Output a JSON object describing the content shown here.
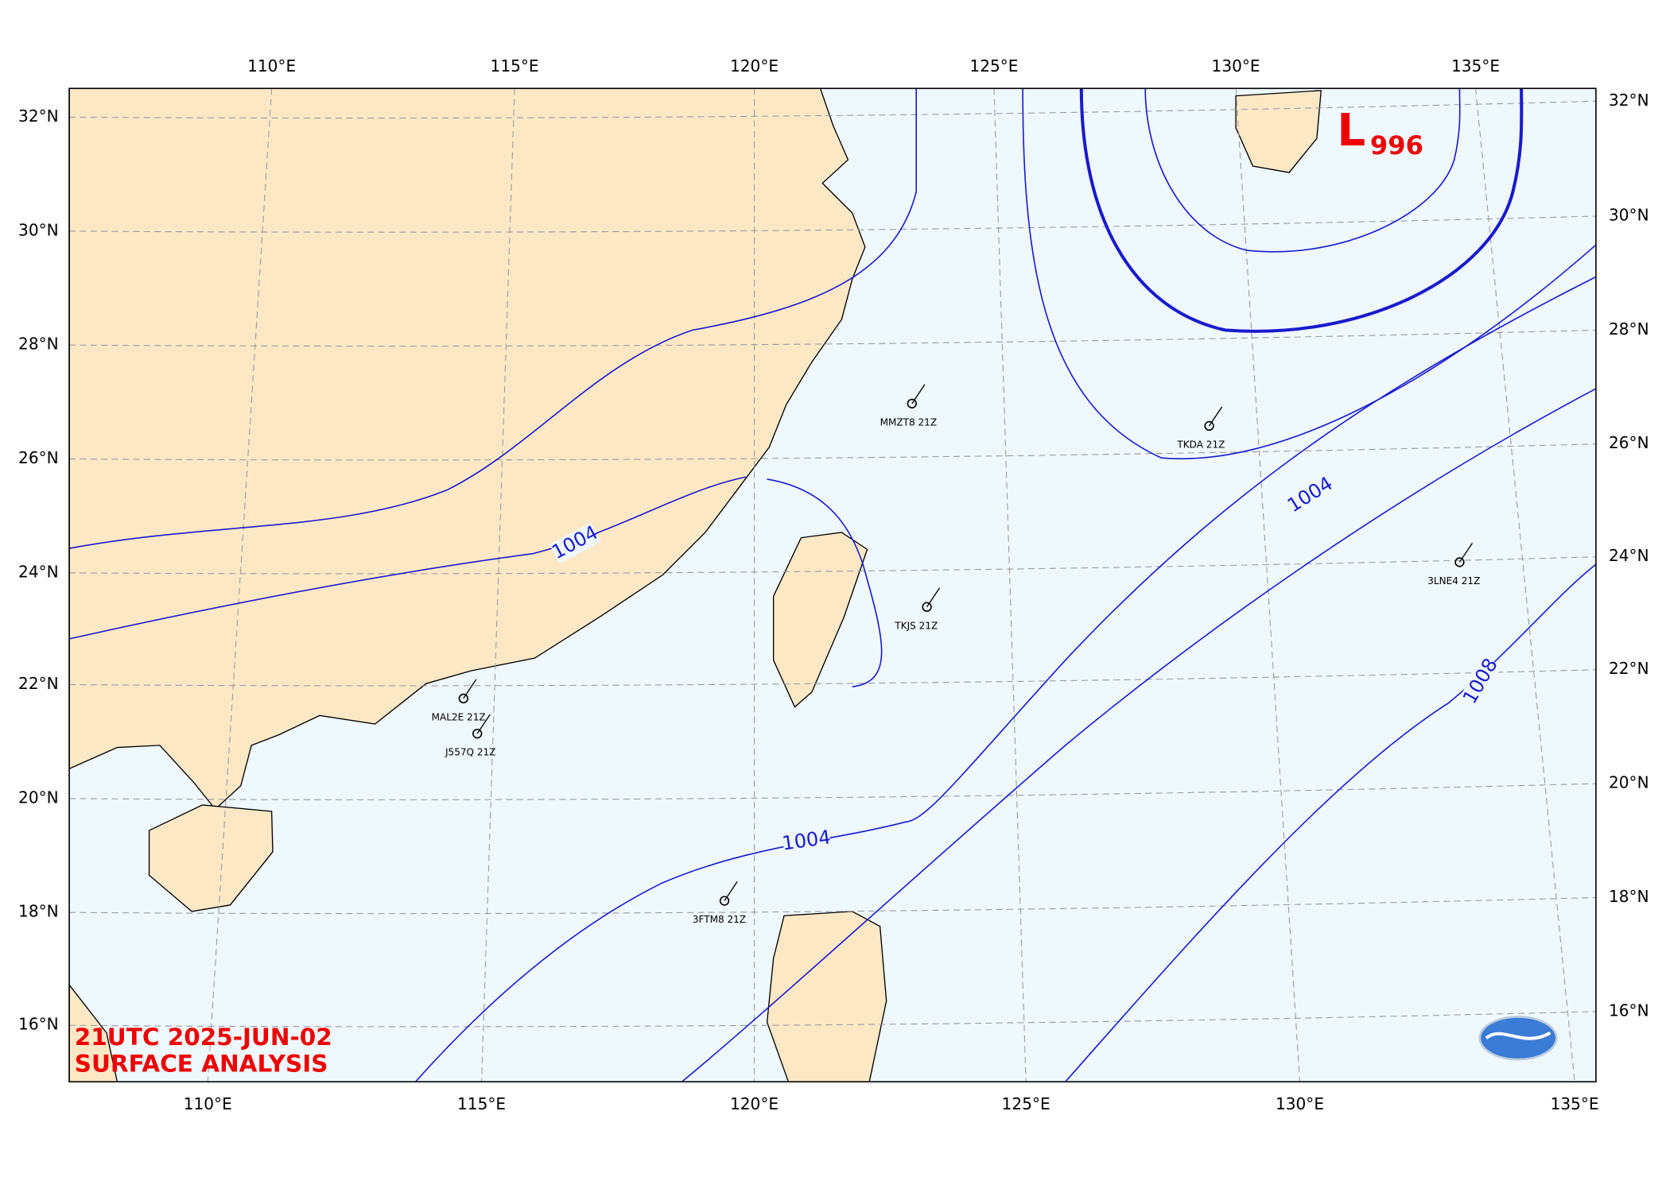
{
  "map": {
    "title_lines": [
      "21UTC  2025-JUN-02",
      "SURFACE ANALYSIS"
    ],
    "lon_labels_top": [
      "110°E",
      "115°E",
      "120°E",
      "125°E",
      "130°E",
      "135°E"
    ],
    "lon_labels_bottom": [
      "110°E",
      "115°E",
      "120°E",
      "125°E",
      "130°E",
      "135°E"
    ],
    "lat_labels_left": [
      "32°N",
      "30°N",
      "28°N",
      "26°N",
      "24°N",
      "22°N",
      "20°N",
      "18°N",
      "16°N"
    ],
    "lat_labels_right": [
      "32°N",
      "30°N",
      "28°N",
      "26°N",
      "24°N",
      "22°N",
      "20°N",
      "18°N",
      "16°N"
    ],
    "low": {
      "symbol": "L",
      "pressure": "996"
    },
    "isobar_labels": [
      "1004",
      "1004",
      "1004",
      "1008"
    ],
    "stations": [
      "MMZT8 21Z",
      "TKJS 21Z",
      "TKDA 21Z",
      "3LNE4 21Z",
      "MAL2E 21Z",
      "J557Q 21Z",
      "3FTM8 21Z"
    ]
  }
}
